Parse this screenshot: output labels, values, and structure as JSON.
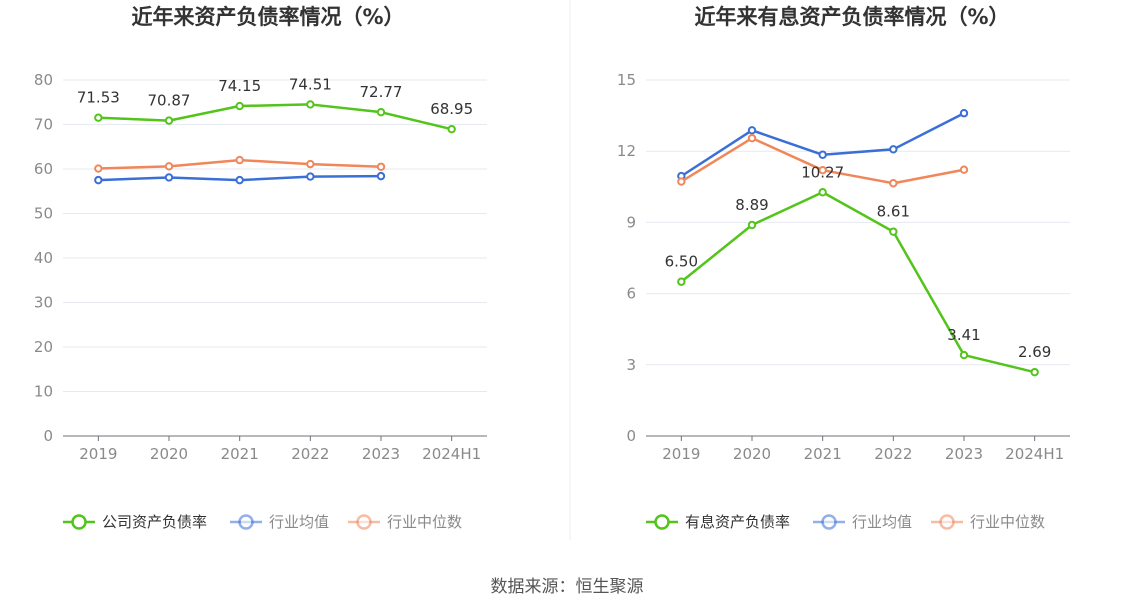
{
  "source": "数据来源：恒生聚源",
  "chart_data": [
    {
      "type": "line",
      "title": "近年来资产负债率情况（%）",
      "categories": [
        "2019",
        "2020",
        "2021",
        "2022",
        "2023",
        "2024H1"
      ],
      "ylim": [
        0,
        80
      ],
      "yticks": [
        0,
        10,
        20,
        30,
        40,
        50,
        60,
        70,
        80
      ],
      "grid": true,
      "legend_position": "bottom",
      "series": [
        {
          "name": "公司资产负债率",
          "color": "#52c41a",
          "values": [
            71.53,
            70.87,
            74.15,
            74.51,
            72.77,
            68.95
          ],
          "labels": [
            "71.53",
            "70.87",
            "74.15",
            "74.51",
            "72.77",
            "68.95"
          ]
        },
        {
          "name": "行业均值",
          "color": "#3a6fd8",
          "values": [
            57.5,
            58.1,
            57.5,
            58.3,
            58.4,
            null
          ]
        },
        {
          "name": "行业中位数",
          "color": "#f0875a",
          "values": [
            60.1,
            60.6,
            62.0,
            61.1,
            60.5,
            null
          ]
        }
      ]
    },
    {
      "type": "line",
      "title": "近年来有息资产负债率情况（%）",
      "categories": [
        "2019",
        "2020",
        "2021",
        "2022",
        "2023",
        "2024H1"
      ],
      "ylim": [
        0,
        15
      ],
      "yticks": [
        0,
        3,
        6,
        9,
        12,
        15
      ],
      "grid": true,
      "legend_position": "bottom",
      "series": [
        {
          "name": "有息资产负债率",
          "color": "#52c41a",
          "values": [
            6.5,
            8.89,
            10.27,
            8.61,
            3.41,
            2.69
          ],
          "labels": [
            "6.50",
            "8.89",
            "10.27",
            "8.61",
            "3.41",
            "2.69"
          ]
        },
        {
          "name": "行业均值",
          "color": "#3a6fd8",
          "values": [
            10.95,
            12.88,
            11.85,
            12.08,
            13.6,
            null
          ]
        },
        {
          "name": "行业中位数",
          "color": "#f0875a",
          "values": [
            10.72,
            12.55,
            11.2,
            10.65,
            11.22,
            null
          ]
        }
      ]
    }
  ]
}
